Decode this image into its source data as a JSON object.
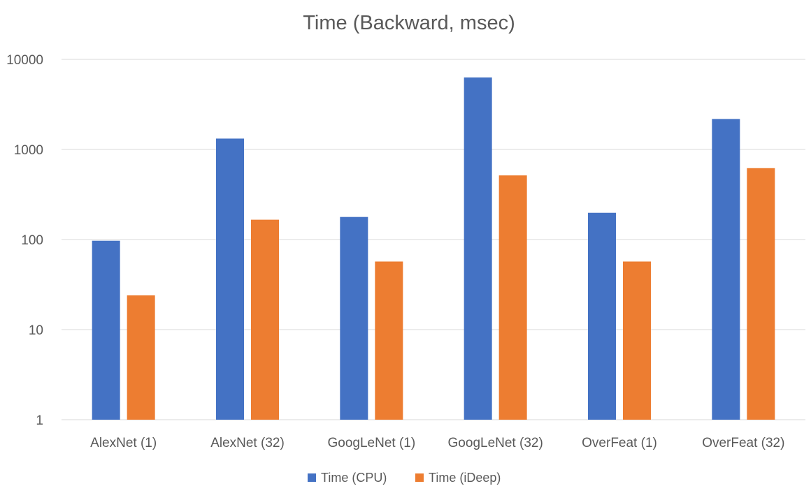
{
  "chart_data": {
    "type": "bar",
    "title": "Time (Backward, msec)",
    "categories": [
      "AlexNet (1)",
      "AlexNet (32)",
      "GoogLeNet (1)",
      "GoogLeNet (32)",
      "OverFeat (1)",
      "OverFeat (32)"
    ],
    "series": [
      {
        "name": "Time (CPU)",
        "color": "#4472C4",
        "values": [
          97,
          1320,
          178,
          6300,
          198,
          2180
        ]
      },
      {
        "name": "Time (iDeep)",
        "color": "#ED7D31",
        "values": [
          24,
          166,
          57,
          515,
          57,
          620
        ]
      }
    ],
    "y_scale": "log",
    "ylim": [
      1,
      10000
    ],
    "y_ticks": [
      "1",
      "10",
      "100",
      "1000",
      "10000"
    ],
    "grid": true,
    "legend_position": "bottom"
  }
}
